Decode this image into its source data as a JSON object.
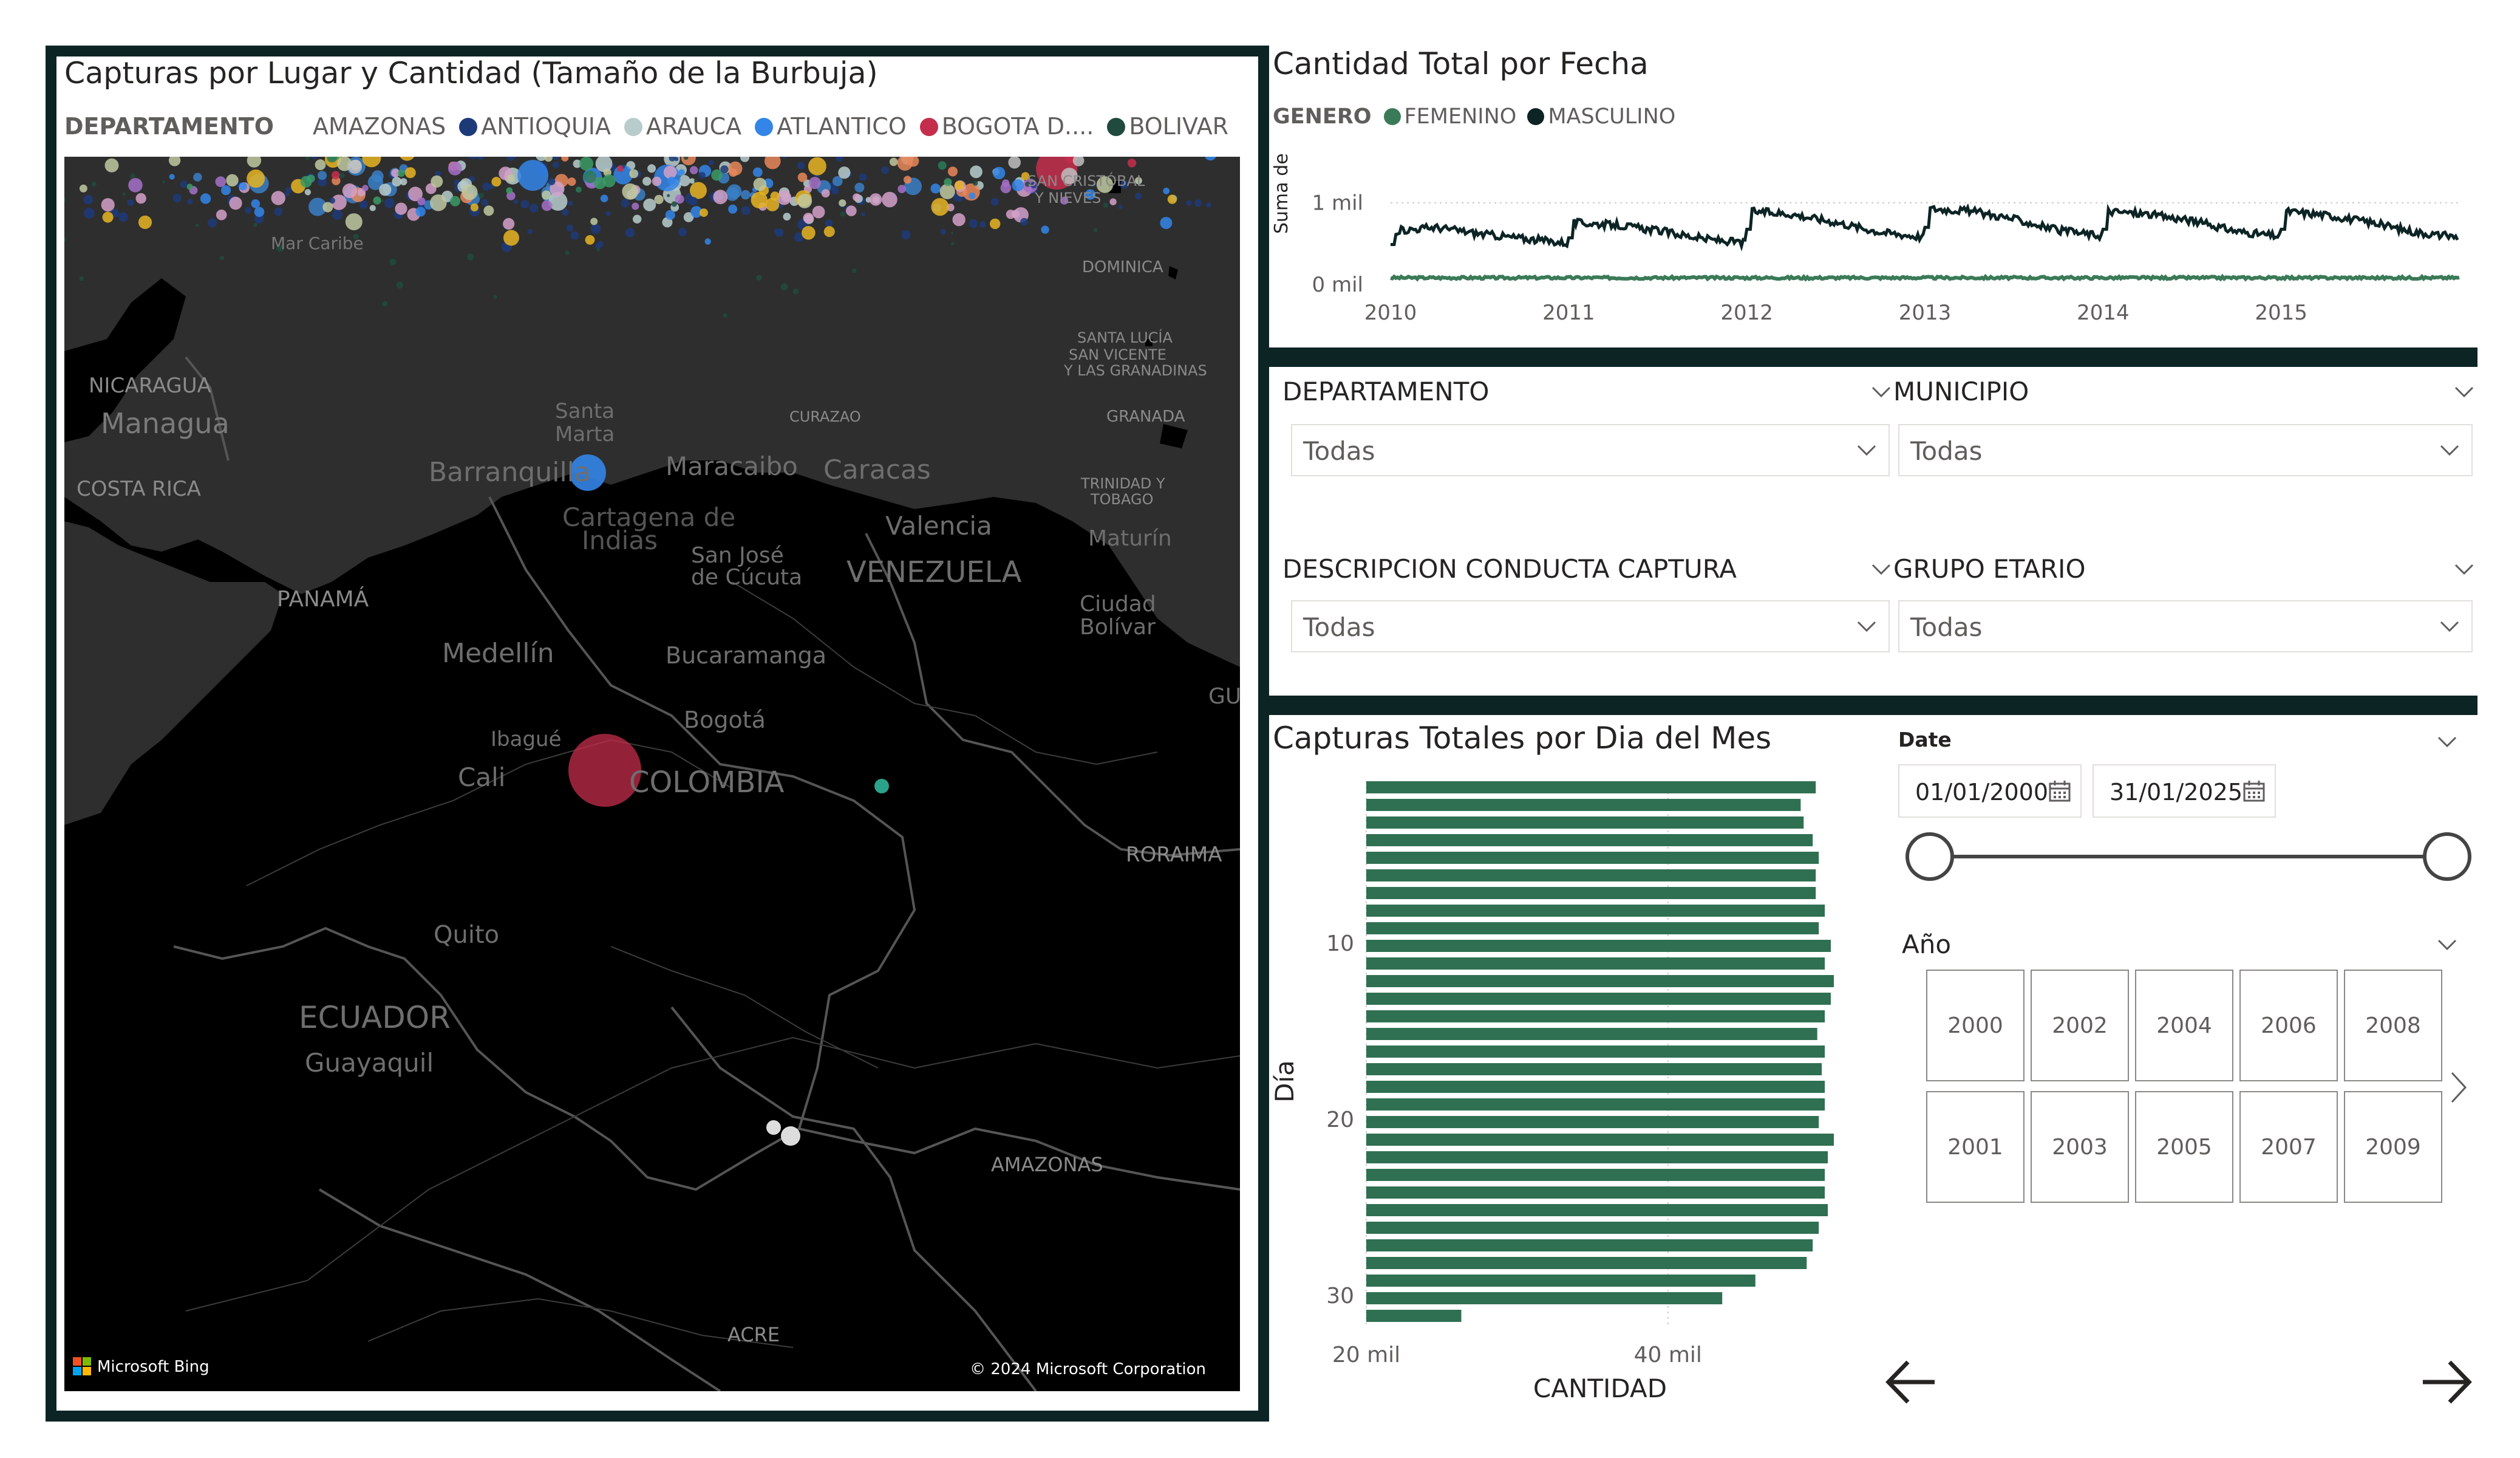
{
  "map_visual": {
    "title": "Capturas por Lugar y Cantidad (Tamaño de la Burbuja)",
    "legend_title": "DEPARTAMENTO",
    "legend_items": [
      {
        "label": "AMAZONAS",
        "color": "#ffffff"
      },
      {
        "label": "ANTIOQUIA",
        "color": "#1d3a78"
      },
      {
        "label": "ARAUCA",
        "color": "#b8cccc"
      },
      {
        "label": "ATLANTICO",
        "color": "#3385e8"
      },
      {
        "label": "BOGOTA D....",
        "color": "#c42e4c"
      },
      {
        "label": "BOLIVAR",
        "color": "#1f4a3d"
      }
    ],
    "place_labels": [
      "Mar Caribe",
      "NICARAGUA",
      "Managua",
      "COSTA RICA",
      "PANAMÁ",
      "SAN CRISTÓBAL",
      "Y NIEVES",
      "DOMINICA",
      "SANTA LUCÍA",
      "SAN VICENTE",
      "Y LAS GRANADINAS",
      "GRANADA",
      "CURAZAO",
      "Santa",
      "Marta",
      "Barranquilla",
      "Maracaibo",
      "Caracas",
      "Cartagena de",
      "Indias",
      "TRINIDAD Y",
      "TOBAGO",
      "Valencia",
      "Maturín",
      "San José",
      "de Cúcuta",
      "VENEZUELA",
      "Ciudad",
      "Bolívar",
      "Medellín",
      "Bucaramanga",
      "GU",
      "Bogotá",
      "Ibagué",
      "Cali",
      "COLOMBIA",
      "RORAIMA",
      "Quito",
      "ECUADOR",
      "Guayaquil",
      "AMAZONAS",
      "ACRE"
    ],
    "bing_label": "Microsoft Bing",
    "copyright": "© 2024 Microsoft Corporation"
  },
  "line_visual": {
    "title": "Cantidad Total por Fecha",
    "legend_title": "GENERO",
    "legend_items": [
      {
        "label": "FEMENINO",
        "color": "#3b7a58"
      },
      {
        "label": "MASCULINO",
        "color": "#0d2425"
      }
    ],
    "y_title": "Suma de CA...",
    "y_ticks": [
      "1 mil",
      "0 mil"
    ],
    "x_ticks": [
      "2010",
      "2011",
      "2012",
      "2013",
      "2014",
      "2015"
    ]
  },
  "slicers": [
    {
      "label": "DEPARTAMENTO",
      "value": "Todas"
    },
    {
      "label": "MUNICIPIO",
      "value": "Todas"
    },
    {
      "label": "DESCRIPCION CONDUCTA CAPTURA",
      "value": "Todas"
    },
    {
      "label": "GRUPO ETARIO",
      "value": "Todas"
    }
  ],
  "bar_visual": {
    "title": "Capturas Totales por Dia del Mes",
    "y_title": "Día",
    "x_title": "CANTIDAD",
    "y_ticks": [
      "10",
      "20",
      "30"
    ],
    "x_ticks": [
      "20 mil",
      "40 mil"
    ],
    "bar_color": "#2f6f52"
  },
  "date_slicer": {
    "label": "Date",
    "start": "01/01/2000",
    "end": "31/01/2025"
  },
  "year_slicer": {
    "label": "Año",
    "years": [
      "2000",
      "2002",
      "2004",
      "2006",
      "2008",
      "2001",
      "2003",
      "2005",
      "2007",
      "2009"
    ]
  },
  "chart_data": [
    {
      "type": "line",
      "title": "Cantidad Total por Fecha",
      "xlabel": "",
      "ylabel": "Suma de CA...",
      "x_range": [
        2010,
        2016
      ],
      "ylim": [
        0,
        1400
      ],
      "series": [
        {
          "name": "FEMENINO",
          "approx_level": 80
        },
        {
          "name": "MASCULINO",
          "yearly_pattern": {
            "2010": [
              650,
              700,
              620,
              560
            ],
            "2011": [
              760,
              730,
              660,
              560
            ],
            "2012": [
              900,
              860,
              760,
              640
            ],
            "2013": [
              930,
              900,
              800,
              660
            ],
            "2014": [
              900,
              860,
              780,
              650
            ],
            "2015": [
              900,
              850,
              760,
              640
            ]
          }
        }
      ]
    },
    {
      "type": "bar",
      "orientation": "horizontal",
      "title": "Capturas Totales por Dia del Mes",
      "xlabel": "CANTIDAD",
      "ylabel": "Día",
      "xlim": [
        20000,
        51000
      ],
      "categories": [
        1,
        2,
        3,
        4,
        5,
        6,
        7,
        8,
        9,
        10,
        11,
        12,
        13,
        14,
        15,
        16,
        17,
        18,
        19,
        20,
        21,
        22,
        23,
        24,
        25,
        26,
        27,
        28,
        29,
        30,
        31
      ],
      "values": [
        49800,
        48800,
        49000,
        49600,
        50000,
        49800,
        49800,
        50400,
        50000,
        50800,
        50400,
        51000,
        50800,
        50400,
        49900,
        50400,
        50200,
        50400,
        50400,
        50000,
        51000,
        50600,
        50400,
        50400,
        50600,
        50000,
        49600,
        49200,
        45800,
        43600,
        26300
      ]
    }
  ]
}
